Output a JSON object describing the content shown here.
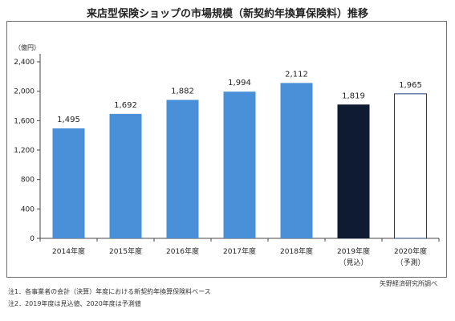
{
  "chart_data": {
    "type": "bar",
    "title": "来店型保険ショップの市場規模（新契約年換算保険料）推移",
    "unit_label": "（億円）",
    "categories": [
      "2014年度",
      "2015年度",
      "2016年度",
      "2017年度",
      "2018年度",
      "2019年度",
      "2020年度"
    ],
    "category_sublabels": [
      "",
      "",
      "",
      "",
      "",
      "（見込）",
      "（予測）"
    ],
    "values": [
      1495,
      1692,
      1882,
      1994,
      2112,
      1819,
      1965
    ],
    "value_labels": [
      "1,495",
      "1,692",
      "1,882",
      "1,994",
      "2,112",
      "1,819",
      "1,965"
    ],
    "bar_styles": [
      "actual",
      "actual",
      "actual",
      "actual",
      "actual",
      "estimate",
      "forecast"
    ],
    "yticks": [
      0,
      400,
      800,
      1200,
      1600,
      2000,
      2400
    ],
    "ytick_labels": [
      "0",
      "400",
      "800",
      "1,200",
      "1,600",
      "2,000",
      "2,400"
    ],
    "ylim": [
      0,
      2400
    ],
    "grid": false,
    "legend": "none"
  },
  "colors": {
    "actual": "#4a90d9",
    "estimate": "#0f1a33",
    "forecast": "#ffffff",
    "forecast_border": "#1f3b73"
  },
  "notes": [
    "注1．各事業者の会計（決算）年度における新契約年換算保険料ベース",
    "注2．2019年度は見込値、2020年度は予測値"
  ],
  "source": "矢野経済研究所調べ"
}
